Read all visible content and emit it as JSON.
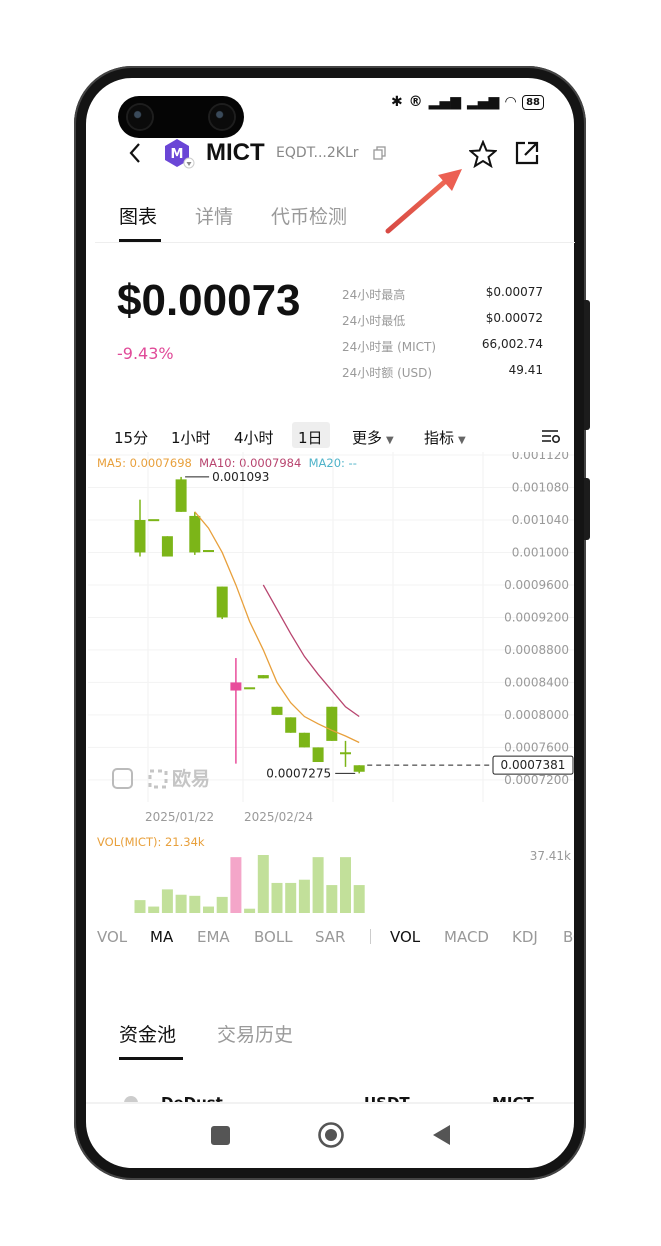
{
  "token": {
    "symbol": "MICT",
    "address_short": "EQDT...2KLr"
  },
  "tabs": [
    {
      "label": "图表",
      "active": true
    },
    {
      "label": "详情",
      "active": false
    },
    {
      "label": "代币检测",
      "active": false
    }
  ],
  "price": {
    "value": "$0.00073",
    "change": "-9.43%"
  },
  "stats": [
    {
      "label": "24小时最高",
      "value": "$0.00077"
    },
    {
      "label": "24小时最低",
      "value": "$0.00072"
    },
    {
      "label": "24小时量 (MICT)",
      "value": "66,002.74"
    },
    {
      "label": "24小时额 (USD)",
      "value": "49.41"
    }
  ],
  "timeframes": [
    "15分",
    "1小时",
    "4小时",
    "1日"
  ],
  "timeframe_selected": "1日",
  "more_label": "更多",
  "indicator_label": "指标",
  "ma_legend": {
    "ma5": "MA5: 0.0007698",
    "ma10": "MA10: 0.0007984",
    "ma20": "MA20: --"
  },
  "colors": {
    "up": "#7cb518",
    "down": "#e84d9b",
    "ma5": "#e8a03c",
    "ma10": "#b8456f",
    "ma20": "#4fb3c9",
    "vol_up": "#c2e09a",
    "vol_down": "#f4a6c9",
    "accent_arrow": "#e8544a"
  },
  "watermark": "欧易",
  "chart_data": {
    "type": "candlestick",
    "y_axis_ticks": [
      "0.001120",
      "0.001080",
      "0.001040",
      "0.001000",
      "0.0009600",
      "0.0009200",
      "0.0008800",
      "0.0008400",
      "0.0008000",
      "0.0007600",
      "0.0007200"
    ],
    "x_axis_ticks": [
      "2025/01/22",
      "2025/02/24"
    ],
    "ylim": [
      0.00071,
      0.00112
    ],
    "candles": [
      {
        "o": 0.001,
        "c": 0.00104,
        "h": 0.001065,
        "l": 0.000995
      },
      {
        "o": 0.001041,
        "c": 0.001041,
        "h": 0.001041,
        "l": 0.001041
      },
      {
        "o": 0.000995,
        "c": 0.00102,
        "h": 0.00102,
        "l": 0.000995
      },
      {
        "o": 0.00105,
        "c": 0.00109,
        "h": 0.001093,
        "l": 0.00105
      },
      {
        "o": 0.001,
        "c": 0.001045,
        "h": 0.00105,
        "l": 0.000997
      },
      {
        "o": 0.001003,
        "c": 0.001003,
        "h": 0.001003,
        "l": 0.001003
      },
      {
        "o": 0.00092,
        "c": 0.000958,
        "h": 0.000958,
        "l": 0.000918
      },
      {
        "o": 0.00084,
        "c": 0.00083,
        "h": 0.00087,
        "l": 0.00074
      },
      {
        "o": 0.000834,
        "c": 0.000834,
        "h": 0.000834,
        "l": 0.000834
      },
      {
        "o": 0.000845,
        "c": 0.000849,
        "h": 0.000849,
        "l": 0.000845
      },
      {
        "o": 0.0008,
        "c": 0.00081,
        "h": 0.00081,
        "l": 0.0008
      },
      {
        "o": 0.000778,
        "c": 0.000797,
        "h": 0.000797,
        "l": 0.000778
      },
      {
        "o": 0.00076,
        "c": 0.000778,
        "h": 0.000778,
        "l": 0.00076
      },
      {
        "o": 0.000742,
        "c": 0.00076,
        "h": 0.00076,
        "l": 0.000742
      },
      {
        "o": 0.000768,
        "c": 0.00081,
        "h": 0.00081,
        "l": 0.000768
      },
      {
        "o": 0.000754,
        "c": 0.000754,
        "h": 0.000768,
        "l": 0.000736
      },
      {
        "o": 0.00073,
        "c": 0.000738,
        "h": 0.000738,
        "l": 0.000728
      }
    ],
    "ma5": [
      null,
      null,
      null,
      null,
      0.00105,
      0.00103,
      0.001,
      0.00096,
      0.000915,
      0.00088,
      0.00084,
      0.000815,
      0.000798,
      0.000789,
      0.000781,
      0.000774,
      0.000766
    ],
    "ma10": [
      null,
      null,
      null,
      null,
      null,
      null,
      null,
      null,
      null,
      0.00096,
      0.00093,
      0.0009,
      0.000872,
      0.00085,
      0.00083,
      0.00081,
      0.000798
    ],
    "high_label": "0.001093",
    "low_label": "0.0007275",
    "last_price_label": "0.0007381",
    "volume": {
      "legend": "VOL(MICT): 21.34k",
      "max_label": "37.41k",
      "values": [
        12,
        6,
        22,
        17,
        16,
        6,
        15,
        52,
        4,
        54,
        28,
        28,
        31,
        52,
        26,
        52,
        26
      ],
      "max": 54
    }
  },
  "indicator_tabs_main": [
    "VOL",
    "MA",
    "EMA",
    "BOLL",
    "SAR"
  ],
  "indicator_main_selected": "MA",
  "indicator_tabs_sub": [
    "VOL",
    "MACD",
    "KDJ",
    "BO"
  ],
  "indicator_sub_selected": "VOL",
  "sub_tabs": [
    {
      "label": "资金池",
      "active": true
    },
    {
      "label": "交易历史",
      "active": false
    }
  ],
  "pool_row_partial": {
    "name": "DeDust",
    "col1": "USDT",
    "col2": "MICT"
  }
}
